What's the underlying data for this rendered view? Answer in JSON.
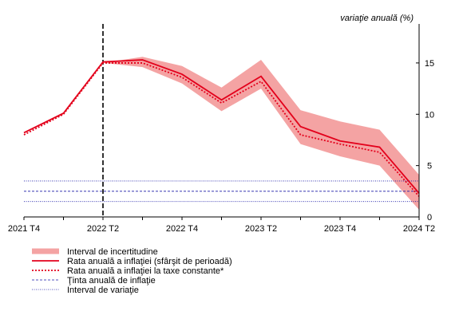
{
  "chart_data": {
    "type": "line",
    "unit_label": "variaţie anuală (%)",
    "x_tick_labels": [
      "2021 T4",
      "2022 T2",
      "2022 T4",
      "2023 T2",
      "2023 T4",
      "2024 T2"
    ],
    "y_ticks": [
      0,
      5,
      10,
      15
    ],
    "ylim": [
      0,
      18.8
    ],
    "n_quarters": 11,
    "vertical_marker_index": 2,
    "series": [
      {
        "name": "Rata anuală a inflaţiei (sfârşit de perioadă)",
        "values": [
          8.2,
          10.1,
          15.1,
          15.3,
          13.9,
          11.4,
          13.7,
          8.8,
          7.4,
          6.8,
          2.3
        ]
      },
      {
        "name": "Rata anuală a inflaţiei la taxe constante*",
        "values": [
          8.0,
          10.0,
          15.0,
          15.0,
          13.6,
          11.1,
          13.2,
          8.0,
          7.1,
          6.3,
          2.0
        ]
      }
    ],
    "uncertainty_interval": {
      "name": "Interval de incertitudine",
      "start_index": 2,
      "lower": [
        15.0,
        14.6,
        13.0,
        10.3,
        12.5,
        7.1,
        5.9,
        5.0,
        0.7
      ],
      "upper": [
        15.0,
        15.6,
        14.7,
        12.6,
        15.3,
        10.4,
        9.3,
        8.5,
        4.1
      ]
    },
    "target": {
      "name": "Ţinta anuală de inflaţie",
      "value": 2.5
    },
    "variation_band": {
      "name": "Interval de variaţie",
      "lower": 1.5,
      "upper": 3.5
    },
    "legend": {
      "position": "bottom-left",
      "items": [
        {
          "label": "Interval de incertitudine",
          "style": "band"
        },
        {
          "label": "Rata anuală a inflaţiei (sfârşit de perioadă)",
          "style": "solid"
        },
        {
          "label": "Rata anuală a inflaţiei la taxe constante*",
          "style": "dotted"
        },
        {
          "label": "Ţinta anuală de inflaţie",
          "style": "dashed"
        },
        {
          "label": "Interval de variaţie",
          "style": "dotted-thin"
        }
      ]
    },
    "colors": {
      "main_line": "#e3001b",
      "band": "#f4a3a3",
      "target": "#1a1aa6",
      "axis": "#000000"
    }
  }
}
